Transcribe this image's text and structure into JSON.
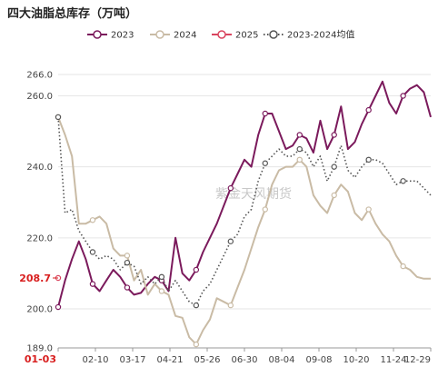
{
  "chart_data": {
    "type": "line",
    "title": "四大油脂总库存（万吨）",
    "xlabel": "",
    "ylabel": "",
    "ylim": [
      189.0,
      266.0
    ],
    "y_ticks": [
      "266.0",
      "260.0",
      "240.0",
      "220.0",
      "200.0",
      "189.0"
    ],
    "x_ticks": [
      "01-03",
      "02-10",
      "03-17",
      "04-21",
      "05-26",
      "06-30",
      "08-04",
      "09-08",
      "10-20",
      "11-24",
      "12-29"
    ],
    "x_range": [
      "01-03",
      "12-29"
    ],
    "grid": "horizontal",
    "legend_position": "top",
    "pointer": {
      "y": 208.7,
      "y_label": "208.7",
      "x_label": "01-03"
    },
    "watermark": "紫金天风期货",
    "colors": {
      "2023": "#7b1a5c",
      "2024": "#c9bba5",
      "2025": "#d9455f",
      "2023-2024均值": "#555555",
      "pointer": "#d81e1e"
    },
    "series": [
      {
        "name": "2023",
        "color": "#7b1a5c",
        "style": "solid",
        "points": [
          [
            0,
            200.5
          ],
          [
            7,
            208
          ],
          [
            14,
            214
          ],
          [
            21,
            219
          ],
          [
            28,
            214
          ],
          [
            35,
            207
          ],
          [
            42,
            205
          ],
          [
            49,
            208
          ],
          [
            56,
            211
          ],
          [
            63,
            209
          ],
          [
            70,
            206
          ],
          [
            77,
            204
          ],
          [
            84,
            204.5
          ],
          [
            91,
            207
          ],
          [
            98,
            209
          ],
          [
            105,
            208
          ],
          [
            112,
            205
          ],
          [
            119,
            220
          ],
          [
            126,
            210
          ],
          [
            133,
            208
          ],
          [
            140,
            211
          ],
          [
            147,
            216
          ],
          [
            154,
            220
          ],
          [
            161,
            224
          ],
          [
            168,
            229
          ],
          [
            175,
            234
          ],
          [
            182,
            238
          ],
          [
            189,
            242
          ],
          [
            196,
            240
          ],
          [
            203,
            249
          ],
          [
            210,
            255
          ],
          [
            217,
            255
          ],
          [
            224,
            250
          ],
          [
            231,
            245
          ],
          [
            238,
            246
          ],
          [
            245,
            249
          ],
          [
            252,
            248
          ],
          [
            259,
            244
          ],
          [
            266,
            253
          ],
          [
            273,
            245
          ],
          [
            280,
            249
          ],
          [
            287,
            257
          ],
          [
            294,
            245
          ],
          [
            301,
            247
          ],
          [
            308,
            252
          ],
          [
            315,
            256
          ],
          [
            322,
            260
          ],
          [
            329,
            264
          ],
          [
            336,
            258
          ],
          [
            343,
            255
          ],
          [
            350,
            260
          ],
          [
            357,
            262
          ],
          [
            364,
            263
          ],
          [
            371,
            261
          ],
          [
            378,
            254
          ]
        ]
      },
      {
        "name": "2024",
        "color": "#c9bba5",
        "style": "solid",
        "points": [
          [
            0,
            254
          ],
          [
            7,
            249
          ],
          [
            14,
            243
          ],
          [
            21,
            224
          ],
          [
            28,
            224
          ],
          [
            35,
            225
          ],
          [
            42,
            226
          ],
          [
            49,
            224
          ],
          [
            56,
            217
          ],
          [
            63,
            215
          ],
          [
            70,
            215
          ],
          [
            77,
            208
          ],
          [
            84,
            211
          ],
          [
            91,
            204
          ],
          [
            98,
            207
          ],
          [
            105,
            205
          ],
          [
            112,
            204
          ],
          [
            119,
            198
          ],
          [
            126,
            197.5
          ],
          [
            133,
            192
          ],
          [
            140,
            190
          ],
          [
            147,
            194
          ],
          [
            154,
            197
          ],
          [
            161,
            203
          ],
          [
            168,
            202
          ],
          [
            175,
            201
          ],
          [
            182,
            206
          ],
          [
            189,
            211
          ],
          [
            196,
            217
          ],
          [
            203,
            223
          ],
          [
            210,
            228
          ],
          [
            217,
            235
          ],
          [
            224,
            239
          ],
          [
            231,
            240
          ],
          [
            238,
            240
          ],
          [
            245,
            242
          ],
          [
            252,
            240
          ],
          [
            259,
            232
          ],
          [
            266,
            229
          ],
          [
            273,
            227
          ],
          [
            280,
            232
          ],
          [
            287,
            235
          ],
          [
            294,
            233
          ],
          [
            301,
            227
          ],
          [
            308,
            225
          ],
          [
            315,
            228
          ],
          [
            322,
            224
          ],
          [
            329,
            221
          ],
          [
            336,
            219
          ],
          [
            343,
            215
          ],
          [
            350,
            212
          ],
          [
            357,
            211
          ],
          [
            364,
            209
          ],
          [
            371,
            208.5
          ],
          [
            378,
            208.5
          ]
        ]
      },
      {
        "name": "2025",
        "color": "#d9455f",
        "style": "solid",
        "points": [
          [
            0,
            208.7
          ]
        ]
      },
      {
        "name": "2023-2024均值",
        "color": "#555555",
        "style": "dotted",
        "points": [
          [
            0,
            254
          ],
          [
            7,
            227
          ],
          [
            14,
            228
          ],
          [
            21,
            222
          ],
          [
            28,
            219
          ],
          [
            35,
            216
          ],
          [
            42,
            214
          ],
          [
            49,
            215
          ],
          [
            56,
            214
          ],
          [
            63,
            211
          ],
          [
            70,
            213
          ],
          [
            77,
            212
          ],
          [
            84,
            207
          ],
          [
            91,
            209
          ],
          [
            98,
            207
          ],
          [
            105,
            209
          ],
          [
            112,
            205
          ],
          [
            119,
            208
          ],
          [
            126,
            205
          ],
          [
            133,
            202
          ],
          [
            140,
            201
          ],
          [
            147,
            205
          ],
          [
            154,
            207
          ],
          [
            161,
            211
          ],
          [
            168,
            215
          ],
          [
            175,
            219
          ],
          [
            182,
            221
          ],
          [
            189,
            226
          ],
          [
            196,
            228
          ],
          [
            203,
            236
          ],
          [
            210,
            241
          ],
          [
            217,
            243
          ],
          [
            224,
            245
          ],
          [
            231,
            243
          ],
          [
            238,
            243
          ],
          [
            245,
            245
          ],
          [
            252,
            244
          ],
          [
            259,
            240
          ],
          [
            266,
            243
          ],
          [
            273,
            236
          ],
          [
            280,
            240
          ],
          [
            287,
            246
          ],
          [
            294,
            239
          ],
          [
            301,
            237
          ],
          [
            308,
            240
          ],
          [
            315,
            242
          ],
          [
            322,
            242
          ],
          [
            329,
            241
          ],
          [
            336,
            238
          ],
          [
            343,
            235
          ],
          [
            350,
            236
          ],
          [
            357,
            236
          ],
          [
            364,
            236
          ],
          [
            371,
            234
          ],
          [
            378,
            232
          ]
        ]
      }
    ]
  }
}
